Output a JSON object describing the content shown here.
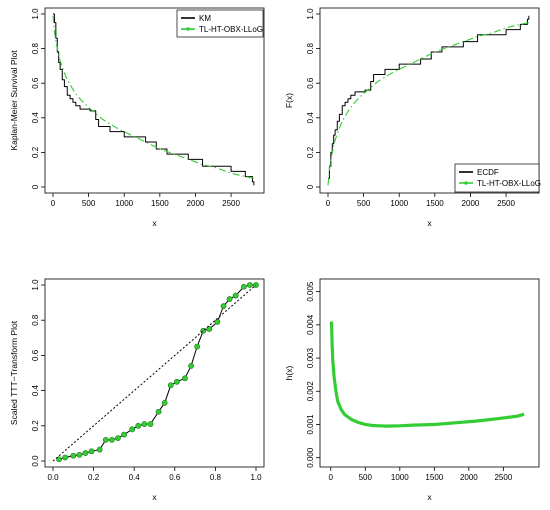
{
  "colors": {
    "empirical": "#000000",
    "model": "#33cc33",
    "ttt_diag": "#000000"
  },
  "chart_data": [
    {
      "type": "line",
      "panel": "km",
      "xlabel": "x",
      "ylabel": "Kaplan-Meier Survival Plot",
      "xlim": [
        0,
        2850
      ],
      "ylim": [
        0,
        1
      ],
      "xticks": [
        0,
        500,
        1000,
        1500,
        2000,
        2500
      ],
      "yticks": [
        0,
        0.2,
        0.4,
        0.6,
        0.8,
        1.0
      ],
      "ytick_labels": [
        "0",
        "0.2",
        "0.4",
        "0.6",
        "0.8",
        "1.0"
      ],
      "legend_position": "top-right",
      "series": [
        {
          "name": "KM",
          "color": "#000000",
          "style": "step",
          "x": [
            0,
            20,
            40,
            60,
            80,
            100,
            130,
            160,
            200,
            240,
            280,
            320,
            380,
            450,
            520,
            600,
            640,
            700,
            800,
            1000,
            1200,
            1300,
            1450,
            1600,
            1750,
            1900,
            2100,
            2300,
            2500,
            2700,
            2800,
            2820
          ],
          "y": [
            1.0,
            0.95,
            0.86,
            0.78,
            0.72,
            0.68,
            0.62,
            0.58,
            0.53,
            0.51,
            0.49,
            0.47,
            0.45,
            0.45,
            0.44,
            0.39,
            0.35,
            0.35,
            0.32,
            0.29,
            0.29,
            0.26,
            0.22,
            0.19,
            0.19,
            0.16,
            0.12,
            0.12,
            0.09,
            0.06,
            0.03,
            0.01
          ]
        },
        {
          "name": "TL-HT-OBX-LLoG",
          "color": "#33cc33",
          "style": "dashdot",
          "x": [
            0,
            20,
            50,
            100,
            150,
            200,
            300,
            400,
            500,
            700,
            900,
            1100,
            1300,
            1500,
            1700,
            1900,
            2100,
            2300,
            2500,
            2700,
            2820
          ],
          "y": [
            0.99,
            0.9,
            0.82,
            0.73,
            0.67,
            0.62,
            0.55,
            0.5,
            0.46,
            0.39,
            0.34,
            0.3,
            0.26,
            0.22,
            0.19,
            0.16,
            0.13,
            0.11,
            0.08,
            0.06,
            0.05
          ]
        }
      ]
    },
    {
      "type": "line",
      "panel": "cdf",
      "xlabel": "x",
      "ylabel": "F(x)",
      "xlim": [
        0,
        2850
      ],
      "ylim": [
        0,
        1
      ],
      "xticks": [
        0,
        500,
        1000,
        1500,
        2000,
        2500
      ],
      "yticks": [
        0,
        0.2,
        0.4,
        0.6,
        0.8,
        1.0
      ],
      "ytick_labels": [
        "0",
        "0.2",
        "0.4",
        "0.6",
        "0.8",
        "1.0"
      ],
      "legend_position": "bottom-right",
      "series": [
        {
          "name": "ECDF",
          "color": "#000000",
          "style": "step",
          "x": [
            0,
            20,
            40,
            60,
            80,
            100,
            130,
            160,
            200,
            240,
            280,
            320,
            380,
            450,
            520,
            600,
            640,
            700,
            800,
            1000,
            1200,
            1300,
            1450,
            1600,
            1750,
            1900,
            2100,
            2300,
            2500,
            2700,
            2800,
            2820
          ],
          "y": [
            0.05,
            0.12,
            0.2,
            0.25,
            0.3,
            0.33,
            0.38,
            0.42,
            0.47,
            0.49,
            0.51,
            0.53,
            0.55,
            0.55,
            0.56,
            0.61,
            0.65,
            0.65,
            0.68,
            0.71,
            0.71,
            0.74,
            0.78,
            0.81,
            0.81,
            0.84,
            0.88,
            0.88,
            0.91,
            0.94,
            0.97,
            0.99
          ]
        },
        {
          "name": "TL-HT-OBX-LLoG",
          "color": "#33cc33",
          "style": "dashdot",
          "x": [
            0,
            20,
            50,
            100,
            150,
            200,
            300,
            400,
            500,
            700,
            900,
            1100,
            1300,
            1500,
            1700,
            1900,
            2100,
            2300,
            2500,
            2700,
            2820
          ],
          "y": [
            0.01,
            0.1,
            0.18,
            0.27,
            0.33,
            0.38,
            0.45,
            0.5,
            0.54,
            0.61,
            0.66,
            0.7,
            0.74,
            0.78,
            0.81,
            0.84,
            0.87,
            0.89,
            0.92,
            0.94,
            0.95
          ]
        }
      ]
    },
    {
      "type": "line",
      "panel": "ttt",
      "xlabel": "x",
      "ylabel": "Scaled TTT−Transform Plot",
      "xlim": [
        0,
        1
      ],
      "ylim": [
        0,
        1
      ],
      "xticks": [
        0,
        0.2,
        0.4,
        0.6,
        0.8,
        1.0
      ],
      "xtick_labels": [
        "0.0",
        "0.2",
        "0.4",
        "0.6",
        "0.8",
        "1.0"
      ],
      "yticks": [
        0,
        0.2,
        0.4,
        0.6,
        0.8,
        1.0
      ],
      "ytick_labels": [
        "0.0",
        "0.2",
        "0.4",
        "0.6",
        "0.8",
        "1.0"
      ],
      "series": [
        {
          "name": "",
          "color": "#000000",
          "style": "line-points",
          "x": [
            0.03,
            0.06,
            0.1,
            0.13,
            0.16,
            0.19,
            0.23,
            0.26,
            0.29,
            0.32,
            0.35,
            0.39,
            0.42,
            0.45,
            0.48,
            0.52,
            0.55,
            0.58,
            0.61,
            0.65,
            0.68,
            0.71,
            0.74,
            0.77,
            0.81,
            0.84,
            0.87,
            0.9,
            0.94,
            0.97,
            1.0
          ],
          "y": [
            0.01,
            0.02,
            0.03,
            0.035,
            0.045,
            0.055,
            0.065,
            0.12,
            0.12,
            0.13,
            0.15,
            0.18,
            0.2,
            0.21,
            0.21,
            0.28,
            0.33,
            0.43,
            0.45,
            0.47,
            0.54,
            0.65,
            0.74,
            0.75,
            0.79,
            0.88,
            0.92,
            0.94,
            0.99,
            1.0,
            1.0
          ]
        },
        {
          "name": "",
          "color": "#000000",
          "style": "dotted",
          "x": [
            0,
            1
          ],
          "y": [
            0,
            1
          ]
        }
      ]
    },
    {
      "type": "line",
      "panel": "hazard",
      "xlabel": "x",
      "ylabel": "h(x)",
      "xlim": [
        -40,
        2900
      ],
      "ylim": [
        -0.0001,
        0.0052
      ],
      "xticks": [
        0,
        500,
        1000,
        1500,
        2000,
        2500
      ],
      "yticks": [
        0,
        0.001,
        0.002,
        0.003,
        0.004,
        0.005
      ],
      "ytick_labels": [
        "0.000",
        "0.001",
        "0.002",
        "0.003",
        "0.004",
        "0.005"
      ],
      "series": [
        {
          "name": "",
          "color": "#33cc33",
          "style": "thick",
          "x": [
            10,
            20,
            30,
            50,
            75,
            100,
            150,
            200,
            300,
            400,
            500,
            600,
            800,
            1000,
            1200,
            1500,
            1800,
            2100,
            2400,
            2700,
            2800
          ],
          "y": [
            0.0041,
            0.0034,
            0.0029,
            0.0024,
            0.002,
            0.0017,
            0.00145,
            0.0013,
            0.00115,
            0.00106,
            0.001,
            0.00097,
            0.00095,
            0.00096,
            0.00098,
            0.001,
            0.00105,
            0.0011,
            0.00117,
            0.00125,
            0.00131
          ]
        }
      ]
    }
  ]
}
